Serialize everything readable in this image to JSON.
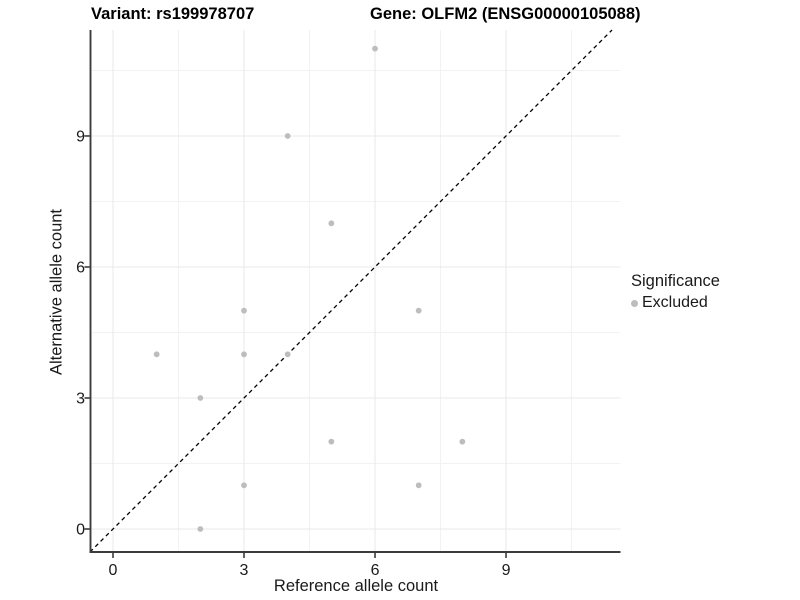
{
  "header": {
    "variant_title": "Variant: rs199978707",
    "gene_title": "Gene: OLFM2 (ENSG00000105088)"
  },
  "legend": {
    "title": "Significance",
    "items": [
      {
        "label": "Excluded",
        "color": "#bdbdbd"
      }
    ]
  },
  "chart_data": {
    "type": "scatter",
    "xlabel": "Reference allele count",
    "ylabel": "Alternative allele count",
    "x_ticks": [
      0,
      3,
      6,
      9
    ],
    "y_ticks": [
      0,
      3,
      6,
      9
    ],
    "minor_ticks": [
      1.5,
      4.5,
      7.5,
      10.5
    ],
    "xlim": [
      -0.5,
      11.6
    ],
    "ylim": [
      -0.53,
      11.43
    ],
    "grid": "major+minor",
    "legend_position": "right",
    "identity_line": {
      "equation": "y = x",
      "style": "dashed",
      "color": "#000000"
    },
    "series": [
      {
        "name": "Excluded",
        "color": "#bdbdbd",
        "points": [
          [
            1,
            4
          ],
          [
            2,
            0
          ],
          [
            2,
            3
          ],
          [
            3,
            1
          ],
          [
            3,
            4
          ],
          [
            3,
            5
          ],
          [
            4,
            4
          ],
          [
            4,
            9
          ],
          [
            5,
            2
          ],
          [
            5,
            7
          ],
          [
            6,
            11
          ],
          [
            7,
            1
          ],
          [
            7,
            5
          ],
          [
            8,
            2
          ]
        ]
      }
    ],
    "colors": {
      "grid_major": "#e8e8e8",
      "grid_minor": "#f2f2f2",
      "axis_line": "#3c3c3c",
      "tick_label": "#1a1a1a",
      "point": "#bdbdbd"
    }
  }
}
